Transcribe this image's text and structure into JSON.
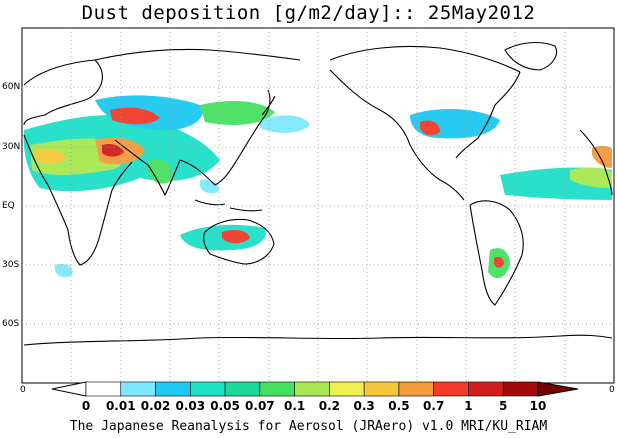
{
  "title": "Dust deposition [g/m2/day]:: 25May2012",
  "footer": "The Japanese Reanalysis for Aerosol (JRAero) v1.0 MRI/KU_RIAM",
  "lat_labels": [
    "60N",
    "30N",
    "EQ",
    "30S",
    "60S"
  ],
  "lon_edge_labels": [
    "0",
    "0"
  ],
  "colorbar": {
    "levels": [
      "0",
      "0.01",
      "0.02",
      "0.03",
      "0.05",
      "0.07",
      "0.1",
      "0.2",
      "0.3",
      "0.5",
      "0.7",
      "1",
      "5",
      "10"
    ],
    "colors": [
      "#ffffff",
      "#ffffff",
      "#7fe8ff",
      "#1ec8f0",
      "#1ee0c8",
      "#1ed79a",
      "#46e060",
      "#a8e850",
      "#f0f050",
      "#f5c83c",
      "#f59a3c",
      "#f03c28",
      "#d21e1e",
      "#a00a0a",
      "#780000"
    ]
  }
}
